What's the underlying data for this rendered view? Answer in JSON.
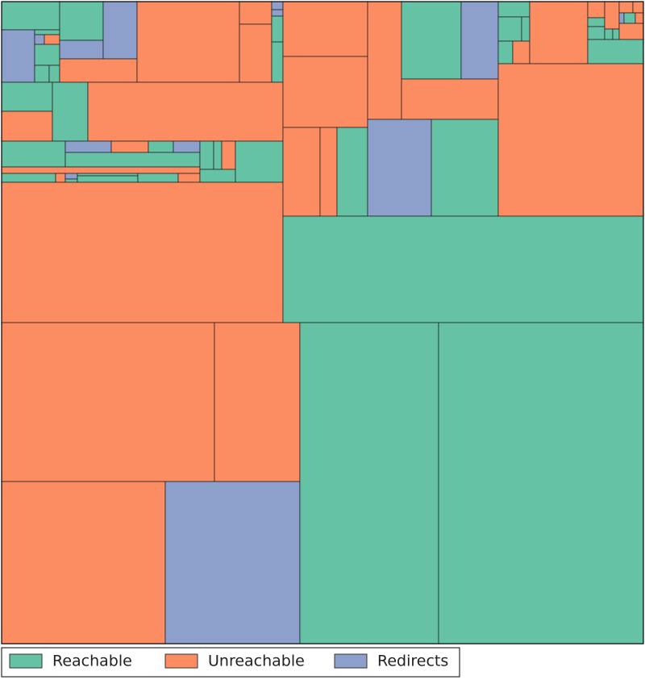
{
  "chart_data": {
    "type": "mosaic",
    "series": [
      {
        "name": "Reachable",
        "color": "#66c2a5"
      },
      {
        "name": "Unreachable",
        "color": "#fc8d62"
      },
      {
        "name": "Redirects",
        "color": "#8da0cb"
      }
    ],
    "legend": "lower left"
  }
}
